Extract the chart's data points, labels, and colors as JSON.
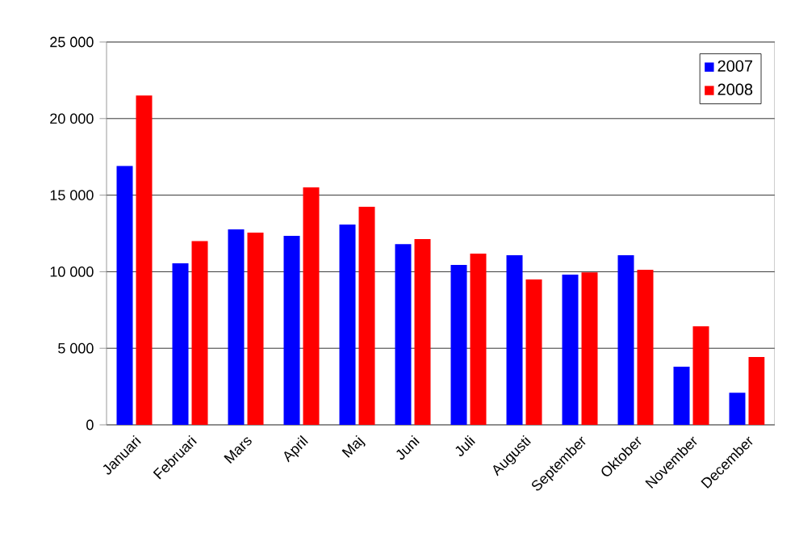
{
  "chart_data": {
    "type": "bar",
    "categories": [
      "Januari",
      "Februari",
      "Mars",
      "April",
      "Maj",
      "Juni",
      "Juli",
      "Augusti",
      "September",
      "Oktober",
      "November",
      "December"
    ],
    "series": [
      {
        "name": "2007",
        "color": "#0000ff",
        "values": [
          16900,
          10550,
          12760,
          12340,
          13080,
          11800,
          10440,
          11080,
          9810,
          11080,
          3800,
          2100
        ]
      },
      {
        "name": "2008",
        "color": "#ff0000",
        "values": [
          21500,
          12000,
          12550,
          15500,
          14240,
          12130,
          11180,
          9490,
          9950,
          10130,
          6430,
          4430
        ]
      }
    ],
    "ylim": [
      0,
      25000
    ],
    "yticks": [
      {
        "value": 0,
        "label": "0"
      },
      {
        "value": 5000,
        "label": "5 000"
      },
      {
        "value": 10000,
        "label": "10 000"
      },
      {
        "value": 15000,
        "label": "15 000"
      },
      {
        "value": 20000,
        "label": "20 000"
      },
      {
        "value": 25000,
        "label": "25 000"
      }
    ],
    "grid": "y",
    "legend": "top right"
  }
}
